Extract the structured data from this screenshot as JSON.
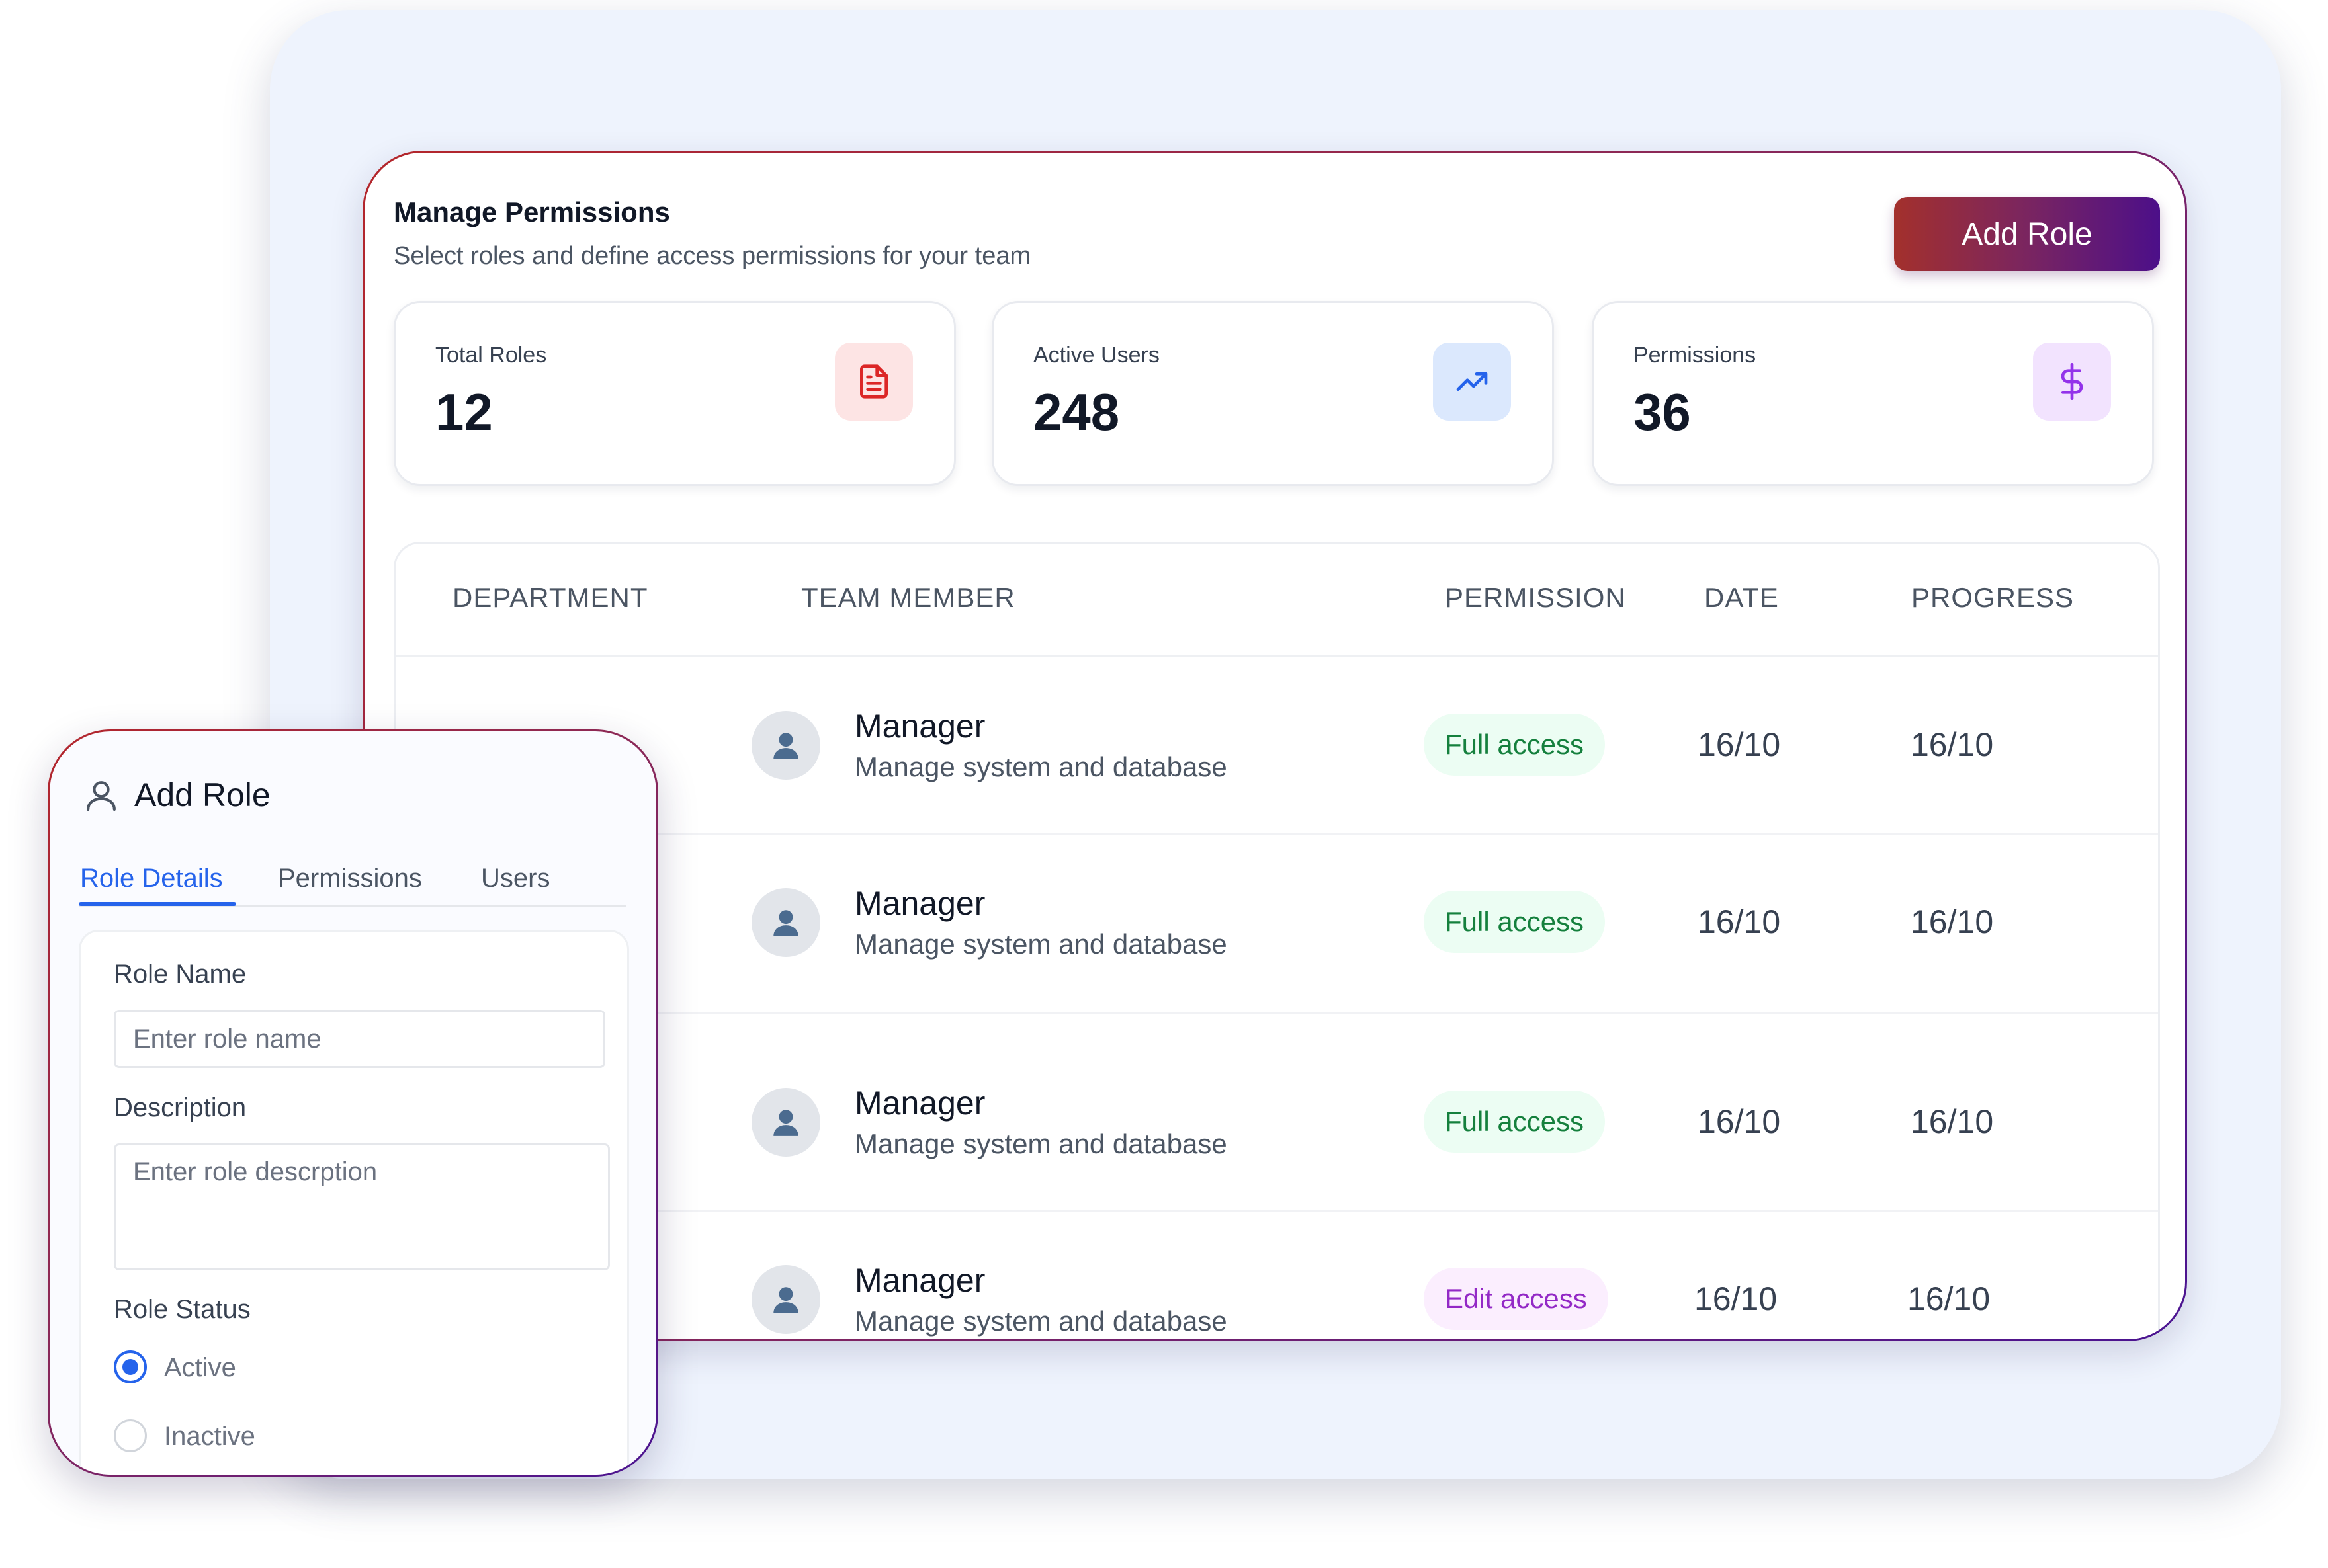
{
  "panel": {
    "title": "Manage Permissions",
    "subtitle": "Select roles and define access permissions for your team",
    "add_role_label": "Add Role"
  },
  "stats": [
    {
      "label": "Total Roles",
      "value": "12",
      "icon": "document-icon",
      "color": "#dc2626"
    },
    {
      "label": "Active Users",
      "value": "248",
      "icon": "trending-up-icon",
      "color": "#2563eb"
    },
    {
      "label": "Permissions",
      "value": "36",
      "icon": "dollar-icon",
      "color": "#9333ea"
    }
  ],
  "table": {
    "headers": [
      "DEPARTMENT",
      "TEAM MEMBER",
      "PERMISSION",
      "DATE",
      "PROGRESS"
    ],
    "rows": [
      {
        "name": "Manager",
        "description": "Manage system and database",
        "permission": "Full access",
        "date": "16/10",
        "progress": "16/10"
      },
      {
        "name": "Manager",
        "description": "Manage system and database",
        "permission": "Full access",
        "date": "16/10",
        "progress": "16/10"
      },
      {
        "name": "Manager",
        "description": "Manage system and database",
        "permission": "Full access",
        "date": "16/10",
        "progress": "16/10"
      },
      {
        "name": "Manager",
        "description": "Manage system and database",
        "permission": "Edit access",
        "date": "16/10",
        "progress": "16/10"
      }
    ]
  },
  "modal": {
    "title": "Add Role",
    "tabs": [
      "Role Details",
      "Permissions",
      "Users"
    ],
    "active_tab": "Role Details",
    "role_name_label": "Role Name",
    "role_name_placeholder": "Enter role name",
    "description_label": "Description",
    "description_placeholder": "Enter role descrption",
    "status_label": "Role Status",
    "status_options": [
      "Active",
      "Inactive"
    ],
    "selected_status": "Active"
  },
  "colors": {
    "accent_gradient_start": "#a3302c",
    "accent_gradient_end": "#4c0f89",
    "tab_active": "#2563eb",
    "badge_full_text": "#15803d",
    "badge_edit_text": "#9329c6"
  }
}
